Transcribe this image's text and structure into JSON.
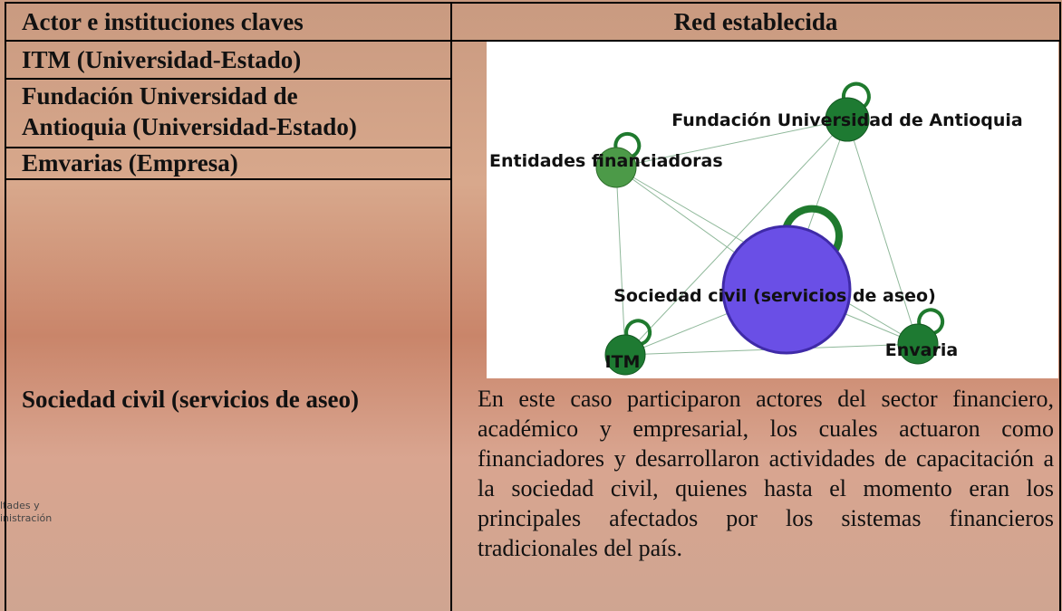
{
  "table": {
    "header": [
      "Actor e instituciones claves",
      "Red establecida"
    ],
    "rows": [
      [
        "ITM (Universidad-Estado)"
      ],
      [
        [
          "Fundación Universidad de",
          "Antioquia (Universidad-Estado)"
        ]
      ],
      [
        "Emvarias (Empresa)"
      ],
      [
        "Sociedad civil (servicios de aseo)",
        "En este caso participaron actores del sector financiero, académico y empresarial, los cuales actuaron como financiadores y desarrollaron actividades de capacitación a la sociedad civil, quienes hasta el momento eran los principales afectados por los sistemas financieros tradicionales del país."
      ]
    ]
  },
  "network": {
    "nodes": [
      {
        "label": "Fundación Universidad de Antioquia"
      },
      {
        "label": "Entidades financiadoras"
      },
      {
        "label": "Sociedad civil (servicios de aseo)"
      },
      {
        "label": "ITM"
      },
      {
        "label": "Envaria"
      }
    ]
  },
  "watermark": [
    "ltades y",
    "inistración"
  ]
}
